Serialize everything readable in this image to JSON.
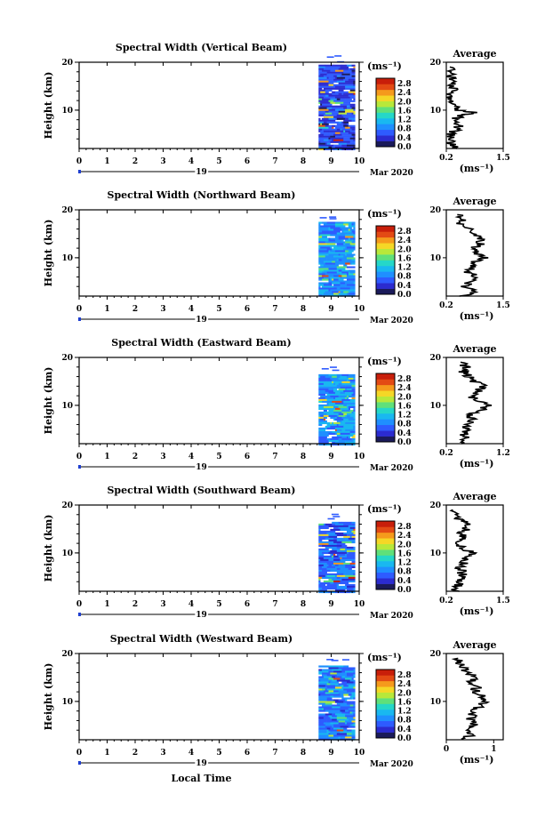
{
  "time_axis": {
    "ticks": [
      "0",
      "1",
      "2",
      "3",
      "4",
      "5",
      "6",
      "7",
      "8",
      "9",
      "10"
    ],
    "day_label": "19",
    "month_label": "Mar 2020",
    "xlabel": "Local Time",
    "xlim": [
      0,
      10
    ]
  },
  "height_axis": {
    "ylabel": "Height (km)",
    "ticks": [
      "10",
      "20"
    ],
    "ylim": [
      2,
      20
    ]
  },
  "colorbar": {
    "unit_label": "(ms⁻¹)",
    "tick_labels": [
      "0.0",
      "0.4",
      "0.8",
      "1.2",
      "1.6",
      "2.0",
      "2.4",
      "2.8"
    ],
    "colors": [
      "#1a1a5a",
      "#2b2bd0",
      "#2e5bff",
      "#1f8fff",
      "#19b8f0",
      "#25d7c8",
      "#5fe07a",
      "#b8e83a",
      "#f5d726",
      "#f59a1c",
      "#e34a14",
      "#c81e0a"
    ]
  },
  "average_panel": {
    "title": "Average",
    "xlabel": "(ms⁻¹)"
  },
  "chart_data": [
    {
      "type": "heatmap",
      "title": "Spectral Width (Vertical Beam)",
      "data_start_time": 8.55,
      "data_end_time": 9.85,
      "height_range": [
        2,
        19.5
      ],
      "dominant_values": [
        0.2,
        0.8
      ],
      "average": {
        "xticks": [
          "0.2",
          "1.5"
        ],
        "xlim": [
          0.2,
          1.5
        ],
        "profile": [
          [
            2,
            0.4
          ],
          [
            3,
            0.3
          ],
          [
            4,
            0.35
          ],
          [
            5,
            0.3
          ],
          [
            6,
            0.45
          ],
          [
            7,
            0.5
          ],
          [
            8,
            0.35
          ],
          [
            9,
            0.6
          ],
          [
            9.5,
            0.9
          ],
          [
            10,
            0.45
          ],
          [
            11,
            0.4
          ],
          [
            12,
            0.35
          ],
          [
            13,
            0.3
          ],
          [
            14,
            0.38
          ],
          [
            15,
            0.32
          ],
          [
            16,
            0.3
          ],
          [
            17,
            0.33
          ],
          [
            18,
            0.3
          ],
          [
            19,
            0.28
          ]
        ]
      }
    },
    {
      "type": "heatmap",
      "title": "Spectral Width (Northward Beam)",
      "data_start_time": 8.55,
      "data_end_time": 9.85,
      "height_range": [
        2,
        17.5
      ],
      "dominant_values": [
        0.6,
        1.2
      ],
      "average": {
        "xticks": [
          "0.2",
          "1.5"
        ],
        "xlim": [
          0.2,
          1.5
        ],
        "profile": [
          [
            2,
            0.6
          ],
          [
            3,
            0.8
          ],
          [
            4,
            0.65
          ],
          [
            5,
            0.75
          ],
          [
            6,
            0.9
          ],
          [
            7,
            0.7
          ],
          [
            8,
            0.8
          ],
          [
            9,
            0.75
          ],
          [
            10,
            1.1
          ],
          [
            11,
            0.9
          ],
          [
            12,
            0.85
          ],
          [
            13,
            1.0
          ],
          [
            14,
            0.95
          ],
          [
            15,
            0.9
          ],
          [
            17,
            0.5
          ],
          [
            18,
            0.6
          ],
          [
            19,
            0.45
          ]
        ]
      }
    },
    {
      "type": "heatmap",
      "title": "Spectral Width (Eastward Beam)",
      "data_start_time": 8.55,
      "data_end_time": 9.85,
      "height_range": [
        2,
        16.5
      ],
      "dominant_values": [
        0.6,
        1.2
      ],
      "average": {
        "xticks": [
          "0.2",
          "1.2"
        ],
        "xlim": [
          0.2,
          1.2
        ],
        "profile": [
          [
            2,
            0.5
          ],
          [
            3,
            0.55
          ],
          [
            4,
            0.5
          ],
          [
            5,
            0.6
          ],
          [
            6,
            0.55
          ],
          [
            7,
            0.65
          ],
          [
            8,
            0.6
          ],
          [
            9,
            0.8
          ],
          [
            10,
            0.95
          ],
          [
            11,
            0.7
          ],
          [
            12,
            0.65
          ],
          [
            13,
            0.75
          ],
          [
            14,
            0.85
          ],
          [
            15,
            0.7
          ],
          [
            16,
            0.6
          ],
          [
            17,
            0.5
          ],
          [
            18,
            0.55
          ],
          [
            19,
            0.45
          ]
        ]
      }
    },
    {
      "type": "heatmap",
      "title": "Spectral Width (Southward Beam)",
      "data_start_time": 8.55,
      "data_end_time": 9.85,
      "height_range": [
        2,
        16.5
      ],
      "dominant_values": [
        0.4,
        1.0
      ],
      "average": {
        "xticks": [
          "0.2",
          "1.5"
        ],
        "xlim": [
          0.2,
          1.5
        ],
        "profile": [
          [
            2,
            0.4
          ],
          [
            3,
            0.45
          ],
          [
            4,
            0.5
          ],
          [
            5,
            0.6
          ],
          [
            6,
            0.55
          ],
          [
            7,
            0.5
          ],
          [
            8,
            0.6
          ],
          [
            9,
            0.65
          ],
          [
            10,
            0.8
          ],
          [
            11,
            0.55
          ],
          [
            12,
            0.5
          ],
          [
            13,
            0.6
          ],
          [
            14,
            0.55
          ],
          [
            15,
            0.65
          ],
          [
            16,
            0.7
          ],
          [
            17,
            0.5
          ],
          [
            18,
            0.45
          ],
          [
            19,
            0.35
          ]
        ]
      }
    },
    {
      "type": "heatmap",
      "title": "Spectral Width (Westward Beam)",
      "data_start_time": 8.55,
      "data_end_time": 9.85,
      "height_range": [
        2,
        17.5
      ],
      "dominant_values": [
        0.4,
        1.2
      ],
      "average": {
        "xticks": [
          "0",
          "1"
        ],
        "xlim": [
          0,
          1.2
        ],
        "profile": [
          [
            2,
            0.4
          ],
          [
            3,
            0.5
          ],
          [
            4,
            0.45
          ],
          [
            5,
            0.6
          ],
          [
            6,
            0.5
          ],
          [
            7,
            0.55
          ],
          [
            8,
            0.6
          ],
          [
            9,
            0.7
          ],
          [
            10,
            0.85
          ],
          [
            11,
            0.75
          ],
          [
            12,
            0.6
          ],
          [
            13,
            0.65
          ],
          [
            14,
            0.5
          ],
          [
            15,
            0.7
          ],
          [
            16,
            0.45
          ],
          [
            17,
            0.35
          ],
          [
            18,
            0.3
          ],
          [
            19,
            0.25
          ]
        ]
      }
    }
  ]
}
